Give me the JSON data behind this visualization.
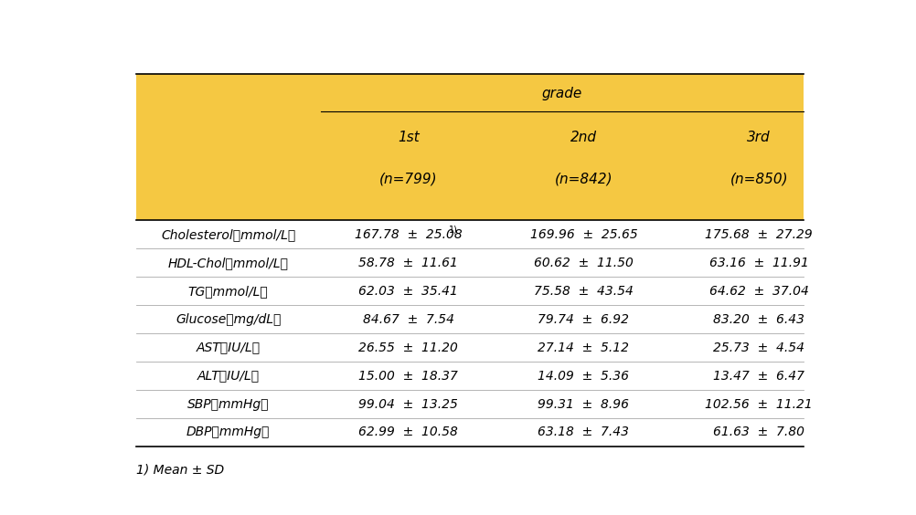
{
  "header_bg_color": "#F5C842",
  "fig_bg_color": "#FFFFFF",
  "grade_label": "grade",
  "col_header_lines": [
    [
      "1st",
      "(n=799)"
    ],
    [
      "2nd",
      "(n=842)"
    ],
    [
      "3rd",
      "(n=850)"
    ]
  ],
  "row_labels": [
    "Cholesterol（mmol/L）",
    "HDL-Chol（mmol/L）",
    "TG（mmol/L）",
    "Glucose（mg/dL）",
    "AST（IU/L）",
    "ALT（IU/L）",
    "SBP（mmHg）",
    "DBP（mmHg）"
  ],
  "data": [
    [
      [
        "167.78",
        "25.08",
        true
      ],
      [
        "169.96",
        "25.65",
        false
      ],
      [
        "175.68",
        "27.29",
        false
      ]
    ],
    [
      [
        "58.78",
        "11.61",
        false
      ],
      [
        "60.62",
        "11.50",
        false
      ],
      [
        "63.16",
        "11.91",
        false
      ]
    ],
    [
      [
        "62.03",
        "35.41",
        false
      ],
      [
        "75.58",
        "43.54",
        false
      ],
      [
        "64.62",
        "37.04",
        false
      ]
    ],
    [
      [
        "84.67",
        "7.54",
        false
      ],
      [
        "79.74",
        "6.92",
        false
      ],
      [
        "83.20",
        "6.43",
        false
      ]
    ],
    [
      [
        "26.55",
        "11.20",
        false
      ],
      [
        "27.14",
        "5.12",
        false
      ],
      [
        "25.73",
        "4.54",
        false
      ]
    ],
    [
      [
        "15.00",
        "18.37",
        false
      ],
      [
        "14.09",
        "5.36",
        false
      ],
      [
        "13.47",
        "6.47",
        false
      ]
    ],
    [
      [
        "99.04",
        "13.25",
        false
      ],
      [
        "99.31",
        "8.96",
        false
      ],
      [
        "102.56",
        "11.21",
        false
      ]
    ],
    [
      [
        "62.99",
        "10.58",
        false
      ],
      [
        "63.18",
        "7.43",
        false
      ],
      [
        "61.63",
        "7.80",
        false
      ]
    ]
  ],
  "footnote": "1) Mean ± SD",
  "font_size_header": 11,
  "font_size_body": 10,
  "font_size_footnote": 10
}
